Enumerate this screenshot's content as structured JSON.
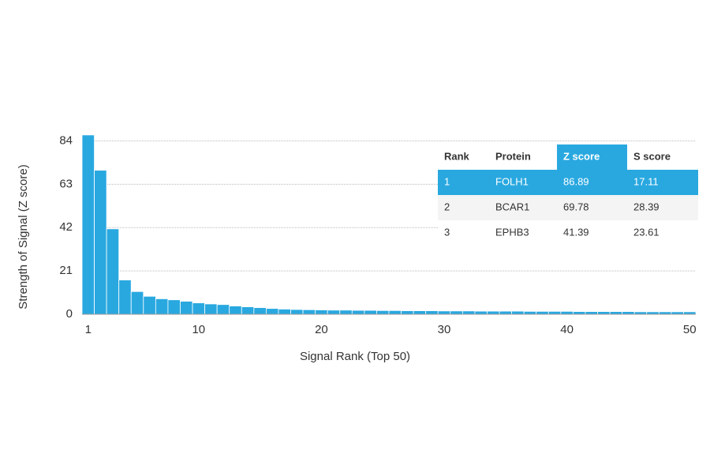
{
  "chart_data": {
    "type": "bar",
    "x_label": "Signal Rank (Top 50)",
    "y_label": "Strength of Signal (Z score)",
    "x": [
      1,
      2,
      3,
      4,
      5,
      6,
      7,
      8,
      9,
      10,
      11,
      12,
      13,
      14,
      15,
      16,
      17,
      18,
      19,
      20,
      21,
      22,
      23,
      24,
      25,
      26,
      27,
      28,
      29,
      30,
      31,
      32,
      33,
      34,
      35,
      36,
      37,
      38,
      39,
      40,
      41,
      42,
      43,
      44,
      45,
      46,
      47,
      48,
      49,
      50
    ],
    "values": [
      86.89,
      69.78,
      41.39,
      16.6,
      11,
      8.7,
      7.5,
      7,
      6.3,
      5.5,
      5,
      4.7,
      4,
      3.6,
      3.2,
      2.8,
      2.5,
      2.3,
      2.2,
      2.1,
      2,
      2,
      1.9,
      1.9,
      1.8,
      1.8,
      1.7,
      1.7,
      1.7,
      1.6,
      1.6,
      1.6,
      1.5,
      1.5,
      1.5,
      1.5,
      1.4,
      1.4,
      1.4,
      1.4,
      1.3,
      1.3,
      1.3,
      1.3,
      1.3,
      1.2,
      1.2,
      1.2,
      1.2,
      1.2
    ],
    "color": "#29a8e0",
    "xlim": [
      0.5,
      50.5
    ],
    "xticks": [
      1,
      10,
      20,
      30,
      40,
      50
    ],
    "ylim": [
      0,
      88
    ],
    "yticks": [
      0,
      21,
      42,
      63,
      84
    ],
    "grid": true,
    "table": {
      "columns": [
        "Rank",
        "Protein",
        "Z score",
        "S score"
      ],
      "rows": [
        [
          1,
          "FOLH1",
          86.89,
          17.11
        ],
        [
          2,
          "BCAR1",
          69.78,
          28.39
        ],
        [
          3,
          "EPHB3",
          41.39,
          23.61
        ]
      ],
      "highlight_row": 0,
      "highlight_column": 2,
      "highlight_color": "#29a8e0"
    }
  }
}
